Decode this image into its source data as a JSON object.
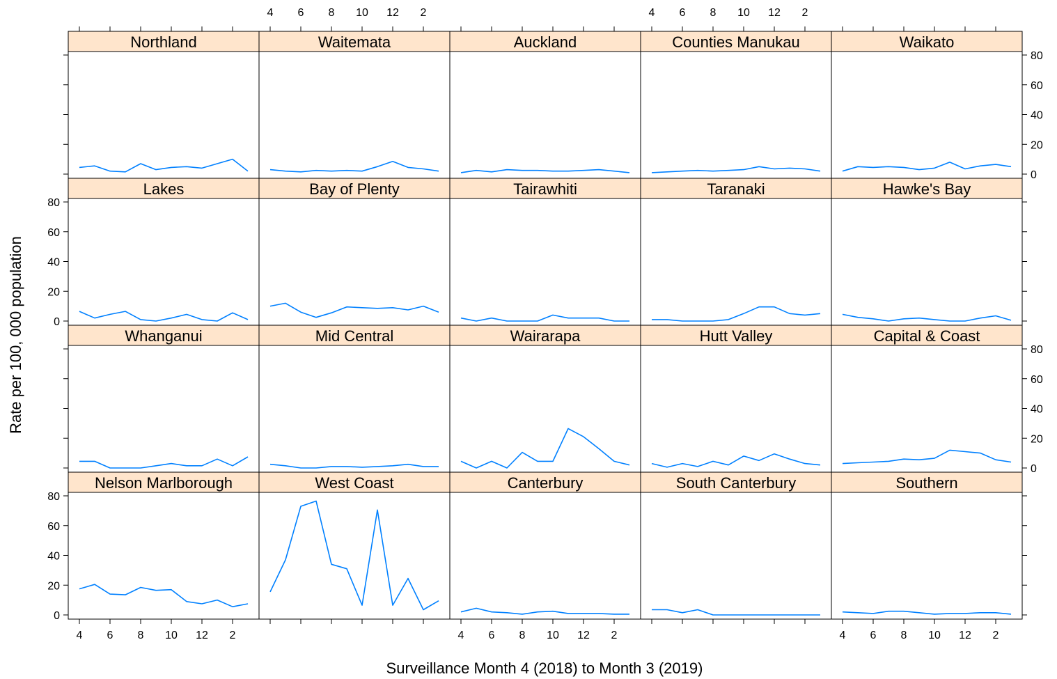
{
  "chart_data": {
    "type": "line",
    "layout": "trellis 5 columns x 4 rows",
    "xlabel": "Surveillance Month 4 (2018) to Month 3 (2019)",
    "ylabel": "Rate per 100, 000 population",
    "ylim": [
      0,
      80
    ],
    "y_ticks": [
      "0",
      "20",
      "40",
      "60",
      "80"
    ],
    "x_months": [
      4,
      5,
      6,
      7,
      8,
      9,
      10,
      11,
      12,
      1,
      2,
      3
    ],
    "x_tick_labels": [
      "4",
      "6",
      "8",
      "10",
      "12",
      "2"
    ],
    "line_color": "#0080ff",
    "strip_color": "#ffe5cc",
    "grid": false,
    "panels": [
      {
        "name": "Northland",
        "values": [
          4.5,
          5.5,
          2,
          1.5,
          7,
          3,
          4.5,
          5,
          4,
          7,
          10,
          2
        ]
      },
      {
        "name": "Waitemata",
        "values": [
          3,
          2,
          1.5,
          2.5,
          2,
          2.5,
          2,
          5,
          8.5,
          4.5,
          3.5,
          2
        ]
      },
      {
        "name": "Auckland",
        "values": [
          1,
          2.5,
          1.5,
          3,
          2.5,
          2.5,
          2,
          2,
          2.5,
          3,
          2,
          1
        ]
      },
      {
        "name": "Counties Manukau",
        "values": [
          1,
          1.5,
          2,
          2.5,
          2,
          2.5,
          3,
          5,
          3.5,
          4,
          3.5,
          2
        ]
      },
      {
        "name": "Waikato",
        "values": [
          2,
          5,
          4.5,
          5,
          4.5,
          3,
          4,
          8,
          3.5,
          5.5,
          6.5,
          5
        ]
      },
      {
        "name": "Lakes",
        "values": [
          6.5,
          2,
          4.5,
          6.5,
          1,
          0,
          2,
          4.5,
          1,
          0,
          5.5,
          1
        ]
      },
      {
        "name": "Bay of Plenty",
        "values": [
          10,
          12,
          6,
          2.5,
          5.5,
          9.5,
          9,
          8.5,
          9,
          7.5,
          10,
          6
        ]
      },
      {
        "name": "Tairawhiti",
        "values": [
          2,
          0,
          2,
          0,
          0,
          0,
          4,
          2,
          2,
          2,
          0,
          0
        ]
      },
      {
        "name": "Taranaki",
        "values": [
          1,
          1,
          0,
          0,
          0,
          1,
          5,
          9.5,
          9.5,
          5,
          4,
          5
        ]
      },
      {
        "name": "Hawke's Bay",
        "values": [
          4.5,
          2.5,
          1.5,
          0,
          1.5,
          2,
          1,
          0,
          0,
          2,
          3.5,
          0.5
        ]
      },
      {
        "name": "Whanganui",
        "values": [
          4.5,
          4.5,
          0,
          0,
          0,
          1.5,
          3,
          1.5,
          1.5,
          6,
          1.5,
          7.5
        ]
      },
      {
        "name": "Mid Central",
        "values": [
          2.5,
          1.5,
          0,
          0,
          1,
          1,
          0.5,
          1,
          1.5,
          2.5,
          1,
          1
        ]
      },
      {
        "name": "Wairarapa",
        "values": [
          4.5,
          0,
          4.5,
          0,
          10.5,
          4.5,
          4.5,
          26.5,
          21,
          13,
          4.5,
          2
        ]
      },
      {
        "name": "Hutt Valley",
        "values": [
          3,
          0.5,
          3,
          1,
          4.5,
          2,
          8,
          5,
          9.5,
          6,
          3,
          2
        ]
      },
      {
        "name": "Capital & Coast",
        "values": [
          3,
          3.5,
          4,
          4.5,
          6,
          5.5,
          6.5,
          12,
          11,
          10,
          5.5,
          4
        ]
      },
      {
        "name": "Nelson Marlborough",
        "values": [
          17.5,
          20.5,
          14,
          13.5,
          18.5,
          16.5,
          17,
          9,
          7.5,
          10,
          5.5,
          7.5
        ]
      },
      {
        "name": "West Coast",
        "values": [
          15.5,
          37,
          73,
          76.5,
          34,
          31,
          6.5,
          70.5,
          6.5,
          24.5,
          3.5,
          9.5
        ]
      },
      {
        "name": "Canterbury",
        "values": [
          2,
          4.5,
          2,
          1.5,
          0.5,
          2,
          2.5,
          1,
          1,
          1,
          0.5,
          0.5
        ]
      },
      {
        "name": "South Canterbury",
        "values": [
          3.5,
          3.5,
          1.5,
          3.5,
          0,
          0,
          0,
          0,
          0,
          0,
          0,
          0
        ]
      },
      {
        "name": "Southern",
        "values": [
          2,
          1.5,
          1,
          2.5,
          2.5,
          1.5,
          0.5,
          1,
          1,
          1.5,
          1.5,
          0.5
        ]
      }
    ]
  }
}
